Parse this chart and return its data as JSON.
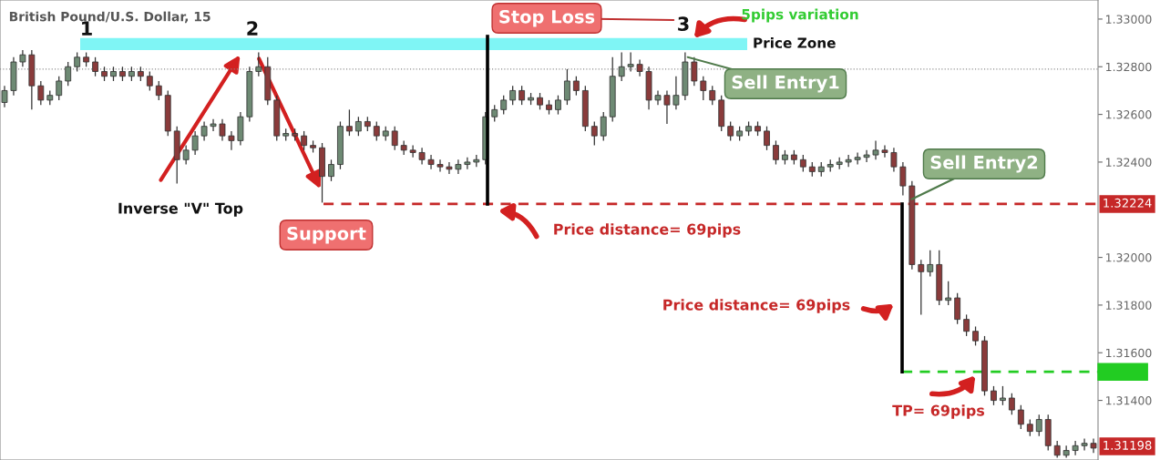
{
  "chart_data": {
    "type": "candlestick",
    "title": "British Pound/U.S. Dollar, 15",
    "categories": [
      null,
      null,
      null,
      null,
      null,
      null,
      null,
      null,
      null,
      null,
      null,
      null,
      null,
      null,
      null,
      null,
      null,
      null,
      null,
      null,
      null,
      null,
      null,
      null,
      null,
      null,
      null,
      null,
      null,
      null,
      null,
      null,
      null,
      null,
      null,
      null,
      null,
      null,
      null,
      null,
      null,
      null,
      null,
      null,
      null,
      null,
      null,
      null,
      null,
      null,
      null,
      null,
      null,
      null,
      null,
      null,
      null,
      null,
      null,
      null,
      null,
      null,
      null,
      null,
      null,
      null,
      null,
      null,
      null,
      null,
      null,
      null,
      null,
      null,
      null,
      null,
      null,
      null,
      null,
      null,
      null,
      null,
      null,
      null,
      null,
      null,
      null,
      null,
      null,
      null,
      null,
      null,
      null,
      null,
      null,
      null,
      null,
      null,
      null,
      null,
      null,
      null,
      null,
      null,
      null,
      null,
      null,
      null,
      null,
      null,
      null,
      null,
      null,
      null,
      null,
      null,
      null,
      null,
      null,
      null,
      null
    ],
    "ohlc": [
      [
        1.3265,
        1.3272,
        1.3263,
        1.327
      ],
      [
        1.327,
        1.3284,
        1.3268,
        1.3282
      ],
      [
        1.3282,
        1.3287,
        1.328,
        1.3285
      ],
      [
        1.3285,
        1.3287,
        1.3262,
        1.3272
      ],
      [
        1.3272,
        1.3274,
        1.3264,
        1.3266
      ],
      [
        1.3266,
        1.327,
        1.3264,
        1.3268
      ],
      [
        1.3268,
        1.3276,
        1.3266,
        1.3274
      ],
      [
        1.3274,
        1.3282,
        1.3272,
        1.328
      ],
      [
        1.328,
        1.3286,
        1.3278,
        1.3284
      ],
      [
        1.3284,
        1.3286,
        1.328,
        1.3282
      ],
      [
        1.3282,
        1.3284,
        1.3276,
        1.3278
      ],
      [
        1.3278,
        1.328,
        1.3274,
        1.3276
      ],
      [
        1.3276,
        1.328,
        1.3274,
        1.3278
      ],
      [
        1.3278,
        1.328,
        1.3274,
        1.3276
      ],
      [
        1.3276,
        1.328,
        1.3274,
        1.3278
      ],
      [
        1.3278,
        1.328,
        1.3274,
        1.3276
      ],
      [
        1.3276,
        1.3278,
        1.327,
        1.3272
      ],
      [
        1.3272,
        1.3274,
        1.3266,
        1.3268
      ],
      [
        1.3268,
        1.327,
        1.3251,
        1.3253
      ],
      [
        1.3253,
        1.3255,
        1.3231,
        1.3241
      ],
      [
        1.3241,
        1.3247,
        1.3239,
        1.3245
      ],
      [
        1.3245,
        1.3253,
        1.3243,
        1.3251
      ],
      [
        1.3251,
        1.3257,
        1.3249,
        1.3255
      ],
      [
        1.3255,
        1.3258,
        1.3253,
        1.3256
      ],
      [
        1.3256,
        1.3258,
        1.3249,
        1.3251
      ],
      [
        1.3251,
        1.3253,
        1.3245,
        1.3249
      ],
      [
        1.3249,
        1.3261,
        1.3247,
        1.3259
      ],
      [
        1.3259,
        1.328,
        1.3257,
        1.3278
      ],
      [
        1.3278,
        1.3286,
        1.3276,
        1.328
      ],
      [
        1.328,
        1.3284,
        1.3264,
        1.3266
      ],
      [
        1.3266,
        1.3268,
        1.3249,
        1.3251
      ],
      [
        1.3251,
        1.3254,
        1.3249,
        1.3252
      ],
      [
        1.3252,
        1.3254,
        1.3249,
        1.3251
      ],
      [
        1.3251,
        1.3253,
        1.3245,
        1.3247
      ],
      [
        1.3247,
        1.3249,
        1.3244,
        1.3246
      ],
      [
        1.3246,
        1.3248,
        1.3223,
        1.3234
      ],
      [
        1.3234,
        1.3241,
        1.3232,
        1.3239
      ],
      [
        1.3239,
        1.3257,
        1.3237,
        1.3255
      ],
      [
        1.3255,
        1.3262,
        1.3251,
        1.3253
      ],
      [
        1.3253,
        1.3259,
        1.3251,
        1.3257
      ],
      [
        1.3257,
        1.3259,
        1.3253,
        1.3255
      ],
      [
        1.3255,
        1.3257,
        1.3249,
        1.3251
      ],
      [
        1.3251,
        1.3255,
        1.3249,
        1.3253
      ],
      [
        1.3253,
        1.3255,
        1.3245,
        1.3247
      ],
      [
        1.3247,
        1.3249,
        1.3243,
        1.3245
      ],
      [
        1.3245,
        1.3247,
        1.3242,
        1.3244
      ],
      [
        1.3244,
        1.3246,
        1.3239,
        1.3241
      ],
      [
        1.3241,
        1.3243,
        1.3237,
        1.3239
      ],
      [
        1.3239,
        1.3241,
        1.3236,
        1.3238
      ],
      [
        1.3238,
        1.324,
        1.3235,
        1.3237
      ],
      [
        1.3237,
        1.3241,
        1.3235,
        1.3239
      ],
      [
        1.3239,
        1.3242,
        1.3237,
        1.324
      ],
      [
        1.324,
        1.3243,
        1.3238,
        1.3241
      ],
      [
        1.3241,
        1.3261,
        1.3239,
        1.3259
      ],
      [
        1.3259,
        1.3264,
        1.3257,
        1.3262
      ],
      [
        1.3262,
        1.3268,
        1.326,
        1.3266
      ],
      [
        1.3266,
        1.3272,
        1.3264,
        1.327
      ],
      [
        1.327,
        1.3272,
        1.3264,
        1.3266
      ],
      [
        1.3266,
        1.3269,
        1.3264,
        1.3267
      ],
      [
        1.3267,
        1.3269,
        1.3262,
        1.3264
      ],
      [
        1.3264,
        1.3266,
        1.326,
        1.3262
      ],
      [
        1.3262,
        1.3268,
        1.326,
        1.3266
      ],
      [
        1.3266,
        1.3279,
        1.3264,
        1.3274
      ],
      [
        1.3274,
        1.3276,
        1.3268,
        1.327
      ],
      [
        1.327,
        1.3272,
        1.3253,
        1.3255
      ],
      [
        1.3255,
        1.3257,
        1.3247,
        1.3251
      ],
      [
        1.3251,
        1.3261,
        1.3249,
        1.3259
      ],
      [
        1.3259,
        1.3284,
        1.3257,
        1.3276
      ],
      [
        1.3276,
        1.3286,
        1.3274,
        1.328
      ],
      [
        1.328,
        1.3286,
        1.3278,
        1.3281
      ],
      [
        1.3281,
        1.3283,
        1.3276,
        1.3278
      ],
      [
        1.3278,
        1.328,
        1.3262,
        1.3266
      ],
      [
        1.3266,
        1.327,
        1.3264,
        1.3268
      ],
      [
        1.3268,
        1.327,
        1.3256,
        1.3264
      ],
      [
        1.3264,
        1.3276,
        1.3262,
        1.3268
      ],
      [
        1.3268,
        1.3286,
        1.3266,
        1.3282
      ],
      [
        1.3282,
        1.3284,
        1.3272,
        1.3274
      ],
      [
        1.3274,
        1.3276,
        1.3266,
        1.327
      ],
      [
        1.327,
        1.3272,
        1.3264,
        1.3266
      ],
      [
        1.3266,
        1.3268,
        1.3253,
        1.3255
      ],
      [
        1.3255,
        1.3257,
        1.3249,
        1.3251
      ],
      [
        1.3251,
        1.3255,
        1.3249,
        1.3253
      ],
      [
        1.3253,
        1.3257,
        1.3251,
        1.3255
      ],
      [
        1.3255,
        1.3257,
        1.3251,
        1.3253
      ],
      [
        1.3253,
        1.3255,
        1.3245,
        1.3247
      ],
      [
        1.3247,
        1.3249,
        1.3239,
        1.3241
      ],
      [
        1.3241,
        1.3245,
        1.3239,
        1.3243
      ],
      [
        1.3243,
        1.3245,
        1.3239,
        1.3241
      ],
      [
        1.3241,
        1.3243,
        1.3236,
        1.3238
      ],
      [
        1.3238,
        1.324,
        1.3234,
        1.3236
      ],
      [
        1.3236,
        1.324,
        1.3234,
        1.3238
      ],
      [
        1.3238,
        1.3241,
        1.3236,
        1.3239
      ],
      [
        1.3239,
        1.3242,
        1.3237,
        1.324
      ],
      [
        1.324,
        1.3243,
        1.3238,
        1.3241
      ],
      [
        1.3241,
        1.3244,
        1.3239,
        1.3242
      ],
      [
        1.3242,
        1.3245,
        1.324,
        1.3243
      ],
      [
        1.3243,
        1.3249,
        1.3241,
        1.3245
      ],
      [
        1.3245,
        1.3247,
        1.3242,
        1.3244
      ],
      [
        1.3244,
        1.3246,
        1.3236,
        1.3238
      ],
      [
        1.3238,
        1.324,
        1.3226,
        1.323
      ],
      [
        1.323,
        1.3232,
        1.3195,
        1.3197
      ],
      [
        1.3197,
        1.3199,
        1.3176,
        1.3194
      ],
      [
        1.3194,
        1.3203,
        1.3192,
        1.3197
      ],
      [
        1.3197,
        1.3203,
        1.318,
        1.3182
      ],
      [
        1.3182,
        1.319,
        1.318,
        1.3183
      ],
      [
        1.3183,
        1.3185,
        1.3172,
        1.3174
      ],
      [
        1.3174,
        1.3176,
        1.3167,
        1.3169
      ],
      [
        1.3169,
        1.3171,
        1.3163,
        1.3165
      ],
      [
        1.3165,
        1.3167,
        1.3142,
        1.3144
      ],
      [
        1.3144,
        1.3146,
        1.3138,
        1.314
      ],
      [
        1.314,
        1.3146,
        1.3138,
        1.3141
      ],
      [
        1.3141,
        1.3143,
        1.3134,
        1.3136
      ],
      [
        1.3136,
        1.3138,
        1.3128,
        1.313
      ],
      [
        1.313,
        1.3132,
        1.3125,
        1.3127
      ],
      [
        1.3127,
        1.3134,
        1.3125,
        1.3132
      ],
      [
        1.3132,
        1.3134,
        1.3119,
        1.3121
      ],
      [
        1.3121,
        1.3123,
        1.3116,
        1.3117
      ],
      [
        1.3117,
        1.3121,
        1.3116,
        1.3119
      ],
      [
        1.3119,
        1.3123,
        1.3117,
        1.3121
      ],
      [
        1.3121,
        1.3124,
        1.3119,
        1.3122
      ],
      [
        1.3122,
        1.3124,
        1.3118,
        1.312
      ]
    ],
    "ylim": [
      1.3115,
      1.3308
    ],
    "yticks": [
      {
        "value": 1.33,
        "label": "1.33000"
      },
      {
        "value": 1.328,
        "label": "1.32800"
      },
      {
        "value": 1.326,
        "label": "1.32600"
      },
      {
        "value": 1.324,
        "label": "1.32400"
      },
      {
        "value": 1.32,
        "label": "1.32000"
      },
      {
        "value": 1.318,
        "label": "1.31800"
      },
      {
        "value": 1.316,
        "label": "1.31600"
      },
      {
        "value": 1.314,
        "label": "1.31400"
      }
    ],
    "tick_labels": "y",
    "grid": false,
    "bands": [
      {
        "axis": "y",
        "from": 1.3287,
        "to": 1.3292,
        "label": "Price Zone",
        "color": "#7ff5f5"
      }
    ],
    "ref_lines": [
      {
        "axis": "y",
        "value": 1.32224,
        "label": "1.32224",
        "color": "#c62828",
        "line_style": "dashed"
      },
      {
        "axis": "y",
        "value": 1.3152,
        "label": null,
        "color": "#22cc22",
        "line_style": "dashed"
      },
      {
        "axis": "y",
        "value": 1.3279,
        "label": null,
        "color": "#888888",
        "line_style": "dotted"
      }
    ],
    "annotations": [
      "1",
      "2",
      "3",
      "Stop Loss",
      "5pips variation",
      "Sell Entry1",
      "Sell Entry2",
      "Inverse \"V\" Top",
      "Support",
      "Price distance= 69pips",
      "Price distance= 69pips",
      "TP= 69pips",
      "1.31198"
    ]
  }
}
